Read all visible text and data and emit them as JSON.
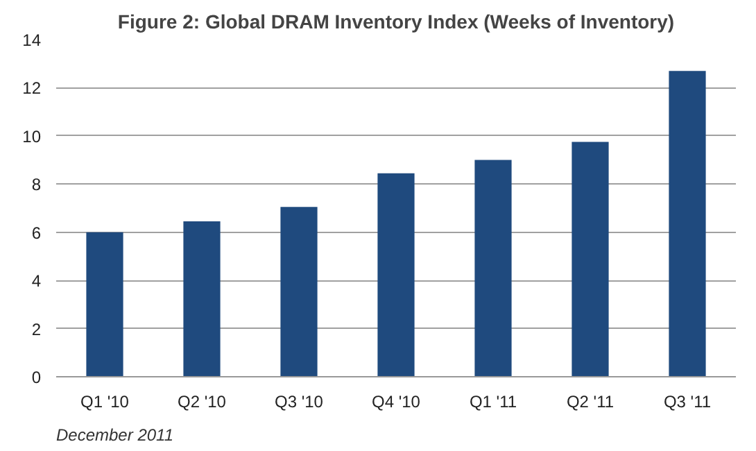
{
  "chart_data": {
    "type": "bar",
    "title": "Figure 2: Global DRAM Inventory Index (Weeks of Inventory)",
    "categories": [
      "Q1 '10",
      "Q2 '10",
      "Q3 '10",
      "Q4 '10",
      "Q1 '11",
      "Q2 '11",
      "Q3 '11"
    ],
    "values": [
      6.0,
      6.45,
      7.05,
      8.45,
      9.0,
      9.75,
      12.7
    ],
    "color": "#1f4a7e",
    "ylim": [
      0,
      14
    ],
    "yticks": [
      0,
      2,
      4,
      6,
      8,
      10,
      12,
      14
    ],
    "grid": "y",
    "annotations": [
      "December 2011"
    ]
  }
}
